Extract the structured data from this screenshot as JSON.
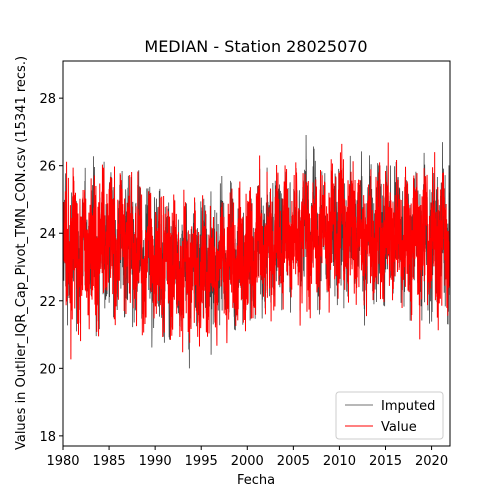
{
  "chart_data": {
    "type": "line",
    "title": "MEDIAN - Station 28025070",
    "xlabel": "Fecha",
    "ylabel": "Values in Outlier_IQR_Cap_Pivot_TMN_CON.csv (15341 recs.)",
    "xlim": [
      1980,
      2022
    ],
    "ylim": [
      17.7,
      29.1
    ],
    "x_ticks": [
      1980,
      1985,
      1990,
      1995,
      2000,
      2005,
      2010,
      2015,
      2020
    ],
    "x_tick_labels": [
      "1980",
      "1985",
      "1990",
      "1995",
      "2000",
      "2005",
      "2010",
      "2015",
      "2020"
    ],
    "y_ticks": [
      18,
      20,
      22,
      24,
      26,
      28
    ],
    "y_tick_labels": [
      "18",
      "20",
      "22",
      "24",
      "26",
      "28"
    ],
    "grid": false,
    "legend_position": "lower-right",
    "series": [
      {
        "name": "Imputed",
        "color": "#404040",
        "baseline": [
          [
            1980,
            23.3
          ],
          [
            1984,
            23.6
          ],
          [
            1985,
            23.9
          ],
          [
            1990,
            23.2
          ],
          [
            1995,
            22.8
          ],
          [
            2000,
            23.3
          ],
          [
            2005,
            24.0
          ],
          [
            2010,
            24.1
          ],
          [
            2015,
            23.9
          ],
          [
            2020,
            23.8
          ],
          [
            2022,
            23.9
          ]
        ],
        "spread": 1.8
      },
      {
        "name": "Value",
        "color": "#ff0000",
        "baseline": [
          [
            1980,
            23.3
          ],
          [
            1984,
            23.6
          ],
          [
            1985,
            23.9
          ],
          [
            1990,
            23.2
          ],
          [
            1995,
            22.8
          ],
          [
            2000,
            23.3
          ],
          [
            2005,
            24.0
          ],
          [
            2010,
            24.1
          ],
          [
            2015,
            23.9
          ],
          [
            2020,
            23.8
          ],
          [
            2022,
            23.9
          ]
        ],
        "spread": 1.8
      }
    ]
  }
}
